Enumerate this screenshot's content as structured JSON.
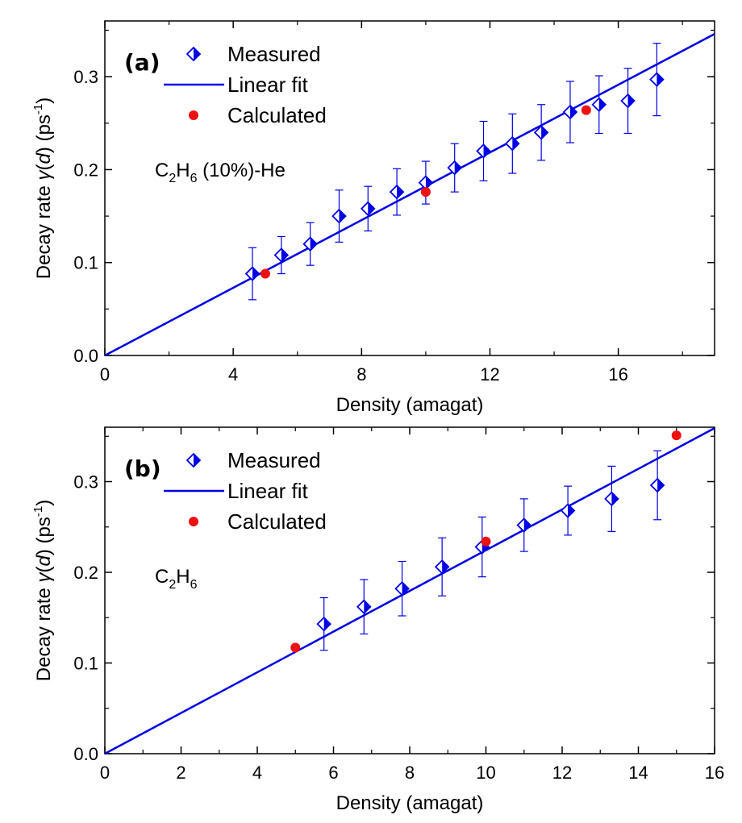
{
  "chart_data": [
    {
      "type": "scatter",
      "panel_label": "(a)",
      "annotation": {
        "main": "C",
        "sub1": "2",
        "mid": "H",
        "sub2": "6",
        "tail": " (10%)-He"
      },
      "xlabel": "Density (amagat)",
      "ylabel": {
        "prefix": "Decay rate ",
        "gamma": "γ",
        "open": "(",
        "d": "d",
        "close": ") (ps",
        "sup": "-1",
        "end": ")"
      },
      "xlim": [
        0,
        19
      ],
      "ylim": [
        0,
        0.36
      ],
      "x_ticks": [
        0,
        4,
        8,
        12,
        16
      ],
      "x_tick_labels": [
        "0",
        "4",
        "8",
        "12",
        "16"
      ],
      "y_ticks": [
        0.0,
        0.1,
        0.2,
        0.3
      ],
      "y_tick_labels": [
        "0.0",
        "0.1",
        "0.2",
        "0.3"
      ],
      "legend": {
        "placement": "top-left",
        "entries": [
          "Measured",
          "Linear fit",
          "Calculated"
        ]
      },
      "series": [
        {
          "name": "Measured",
          "marker": "half-filled-diamond",
          "color": "#0000e6",
          "points": [
            {
              "x": 4.6,
              "y": 0.088,
              "err": 0.028
            },
            {
              "x": 5.5,
              "y": 0.108,
              "err": 0.02
            },
            {
              "x": 6.4,
              "y": 0.12,
              "err": 0.023
            },
            {
              "x": 7.3,
              "y": 0.15,
              "err": 0.028
            },
            {
              "x": 8.2,
              "y": 0.158,
              "err": 0.024
            },
            {
              "x": 9.1,
              "y": 0.176,
              "err": 0.025
            },
            {
              "x": 10.0,
              "y": 0.186,
              "err": 0.023
            },
            {
              "x": 10.9,
              "y": 0.202,
              "err": 0.026
            },
            {
              "x": 11.8,
              "y": 0.22,
              "err": 0.032
            },
            {
              "x": 12.7,
              "y": 0.228,
              "err": 0.032
            },
            {
              "x": 13.6,
              "y": 0.24,
              "err": 0.03
            },
            {
              "x": 14.5,
              "y": 0.262,
              "err": 0.033
            },
            {
              "x": 15.4,
              "y": 0.27,
              "err": 0.031
            },
            {
              "x": 16.3,
              "y": 0.274,
              "err": 0.035
            },
            {
              "x": 17.2,
              "y": 0.297,
              "err": 0.039
            }
          ]
        },
        {
          "name": "Linear fit",
          "type": "line",
          "color": "#0000e6",
          "x": [
            0,
            19
          ],
          "y": [
            0,
            0.346
          ]
        },
        {
          "name": "Calculated",
          "marker": "circle",
          "color": "#ee1111",
          "points": [
            {
              "x": 5.0,
              "y": 0.088
            },
            {
              "x": 10.0,
              "y": 0.176
            },
            {
              "x": 15.0,
              "y": 0.264
            }
          ]
        }
      ]
    },
    {
      "type": "scatter",
      "panel_label": "(b)",
      "annotation": {
        "main": "C",
        "sub1": "2",
        "mid": "H",
        "sub2": "6",
        "tail": ""
      },
      "xlabel": "Density (amagat)",
      "ylabel": {
        "prefix": "Decay rate ",
        "gamma": "γ",
        "open": "(",
        "d": "d",
        "close": ") (ps",
        "sup": "-1",
        "end": ")"
      },
      "xlim": [
        0,
        16
      ],
      "ylim": [
        0,
        0.36
      ],
      "x_ticks": [
        0,
        2,
        4,
        6,
        8,
        10,
        12,
        14,
        16
      ],
      "x_tick_labels": [
        "0",
        "2",
        "4",
        "6",
        "8",
        "10",
        "12",
        "14",
        "16"
      ],
      "y_ticks": [
        0.0,
        0.1,
        0.2,
        0.3
      ],
      "y_tick_labels": [
        "0.0",
        "0.1",
        "0.2",
        "0.3"
      ],
      "legend": {
        "placement": "top-left",
        "entries": [
          "Measured",
          "Linear fit",
          "Calculated"
        ]
      },
      "series": [
        {
          "name": "Measured",
          "marker": "half-filled-diamond",
          "color": "#0000e6",
          "points": [
            {
              "x": 5.75,
              "y": 0.143,
              "err": 0.029
            },
            {
              "x": 6.8,
              "y": 0.162,
              "err": 0.03
            },
            {
              "x": 7.8,
              "y": 0.182,
              "err": 0.03
            },
            {
              "x": 8.85,
              "y": 0.206,
              "err": 0.032
            },
            {
              "x": 9.9,
              "y": 0.228,
              "err": 0.033
            },
            {
              "x": 11.0,
              "y": 0.252,
              "err": 0.029
            },
            {
              "x": 12.15,
              "y": 0.268,
              "err": 0.027
            },
            {
              "x": 13.3,
              "y": 0.281,
              "err": 0.036
            },
            {
              "x": 14.5,
              "y": 0.296,
              "err": 0.038
            }
          ]
        },
        {
          "name": "Linear fit",
          "type": "line",
          "color": "#0000e6",
          "x": [
            0,
            16
          ],
          "y": [
            0,
            0.359
          ]
        },
        {
          "name": "Calculated",
          "marker": "circle",
          "color": "#ee1111",
          "points": [
            {
              "x": 5.0,
              "y": 0.117
            },
            {
              "x": 10.0,
              "y": 0.234
            },
            {
              "x": 15.0,
              "y": 0.351
            }
          ]
        }
      ]
    }
  ]
}
